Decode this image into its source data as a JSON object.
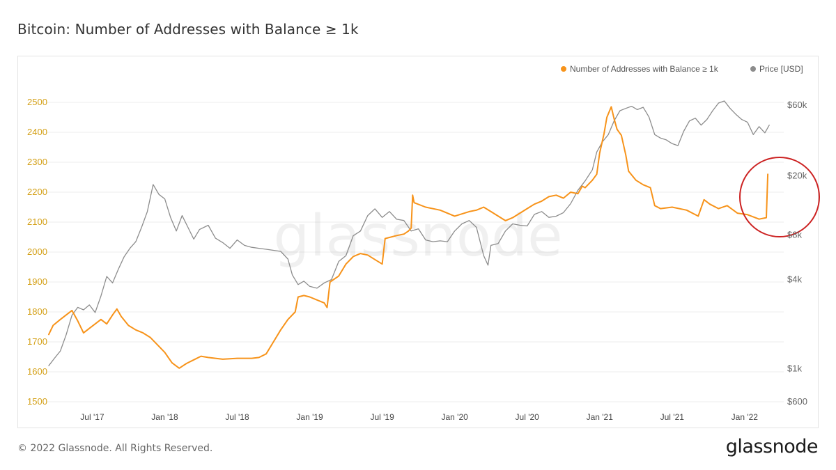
{
  "header": {
    "title": "Bitcoin: Number of Addresses with Balance ≥ 1k"
  },
  "footer": {
    "copyright": "© 2022 Glassnode. All Rights Reserved.",
    "logo_text": "glassnode"
  },
  "watermark": "glassnode",
  "colors": {
    "addresses": "#f7931a",
    "price": "#8c8c8c",
    "left_axis_text": "#d4a017",
    "right_axis_text": "#666666",
    "grid": "#eeeeee",
    "highlight_circle": "#cc2222"
  },
  "chart_data": {
    "type": "line",
    "title": "Bitcoin: Number of Addresses with Balance ≥ 1k",
    "x_range": [
      2017.2,
      2022.27
    ],
    "x_ticks": [
      {
        "label": "Jul '17",
        "t": 2017.5
      },
      {
        "label": "Jan '18",
        "t": 2018.0
      },
      {
        "label": "Jul '18",
        "t": 2018.5
      },
      {
        "label": "Jan '19",
        "t": 2019.0
      },
      {
        "label": "Jul '19",
        "t": 2019.5
      },
      {
        "label": "Jan '20",
        "t": 2020.0
      },
      {
        "label": "Jul '20",
        "t": 2020.5
      },
      {
        "label": "Jan '21",
        "t": 2021.0
      },
      {
        "label": "Jul '21",
        "t": 2021.5
      },
      {
        "label": "Jan '22",
        "t": 2022.0
      }
    ],
    "y_left": {
      "min": 1500,
      "max": 2500,
      "ticks": [
        1500,
        1600,
        1700,
        1800,
        1900,
        2000,
        2100,
        2200,
        2300,
        2400,
        2500
      ]
    },
    "y_right": {
      "scale": "log",
      "min": 600,
      "max": 60000,
      "ticks": [
        {
          "label": "$600",
          "v": 600
        },
        {
          "label": "$1k",
          "v": 1000
        },
        {
          "label": "$4k",
          "v": 4000
        },
        {
          "label": "$8k",
          "v": 8000
        },
        {
          "label": "$20k",
          "v": 20000
        },
        {
          "label": "$60k",
          "v": 60000
        }
      ]
    },
    "legend": {
      "position": "top-right",
      "entries": [
        "Number of Addresses with Balance ≥ 1k",
        "Price [USD]"
      ]
    },
    "series": [
      {
        "name": "Number of Addresses with Balance ≥ 1k",
        "axis": "left",
        "points": [
          [
            2017.2,
            1725
          ],
          [
            2017.23,
            1755
          ],
          [
            2017.28,
            1775
          ],
          [
            2017.32,
            1790
          ],
          [
            2017.36,
            1805
          ],
          [
            2017.4,
            1770
          ],
          [
            2017.44,
            1730
          ],
          [
            2017.48,
            1745
          ],
          [
            2017.52,
            1760
          ],
          [
            2017.56,
            1775
          ],
          [
            2017.6,
            1760
          ],
          [
            2017.64,
            1790
          ],
          [
            2017.67,
            1810
          ],
          [
            2017.7,
            1785
          ],
          [
            2017.75,
            1755
          ],
          [
            2017.8,
            1740
          ],
          [
            2017.85,
            1730
          ],
          [
            2017.9,
            1715
          ],
          [
            2017.95,
            1690
          ],
          [
            2018.0,
            1665
          ],
          [
            2018.05,
            1630
          ],
          [
            2018.1,
            1612
          ],
          [
            2018.15,
            1628
          ],
          [
            2018.2,
            1640
          ],
          [
            2018.25,
            1652
          ],
          [
            2018.3,
            1648
          ],
          [
            2018.35,
            1645
          ],
          [
            2018.4,
            1642
          ],
          [
            2018.5,
            1645
          ],
          [
            2018.6,
            1645
          ],
          [
            2018.65,
            1648
          ],
          [
            2018.7,
            1660
          ],
          [
            2018.75,
            1700
          ],
          [
            2018.8,
            1740
          ],
          [
            2018.85,
            1775
          ],
          [
            2018.9,
            1800
          ],
          [
            2018.92,
            1850
          ],
          [
            2018.96,
            1855
          ],
          [
            2019.0,
            1850
          ],
          [
            2019.05,
            1840
          ],
          [
            2019.1,
            1830
          ],
          [
            2019.12,
            1815
          ],
          [
            2019.14,
            1900
          ],
          [
            2019.2,
            1920
          ],
          [
            2019.25,
            1960
          ],
          [
            2019.3,
            1985
          ],
          [
            2019.35,
            1995
          ],
          [
            2019.4,
            1990
          ],
          [
            2019.45,
            1975
          ],
          [
            2019.5,
            1960
          ],
          [
            2019.52,
            2045
          ],
          [
            2019.6,
            2055
          ],
          [
            2019.65,
            2060
          ],
          [
            2019.68,
            2070
          ],
          [
            2019.7,
            2080
          ],
          [
            2019.71,
            2190
          ],
          [
            2019.72,
            2165
          ],
          [
            2019.8,
            2150
          ],
          [
            2019.9,
            2140
          ],
          [
            2020.0,
            2120
          ],
          [
            2020.1,
            2135
          ],
          [
            2020.15,
            2140
          ],
          [
            2020.2,
            2150
          ],
          [
            2020.25,
            2135
          ],
          [
            2020.3,
            2120
          ],
          [
            2020.35,
            2105
          ],
          [
            2020.4,
            2115
          ],
          [
            2020.45,
            2130
          ],
          [
            2020.5,
            2145
          ],
          [
            2020.55,
            2160
          ],
          [
            2020.6,
            2170
          ],
          [
            2020.65,
            2185
          ],
          [
            2020.7,
            2190
          ],
          [
            2020.75,
            2180
          ],
          [
            2020.8,
            2200
          ],
          [
            2020.85,
            2195
          ],
          [
            2020.88,
            2220
          ],
          [
            2020.9,
            2215
          ],
          [
            2020.95,
            2240
          ],
          [
            2020.98,
            2260
          ],
          [
            2021.0,
            2330
          ],
          [
            2021.03,
            2395
          ],
          [
            2021.05,
            2450
          ],
          [
            2021.08,
            2485
          ],
          [
            2021.1,
            2445
          ],
          [
            2021.12,
            2410
          ],
          [
            2021.15,
            2390
          ],
          [
            2021.18,
            2325
          ],
          [
            2021.2,
            2270
          ],
          [
            2021.25,
            2240
          ],
          [
            2021.3,
            2225
          ],
          [
            2021.35,
            2215
          ],
          [
            2021.38,
            2155
          ],
          [
            2021.42,
            2145
          ],
          [
            2021.5,
            2150
          ],
          [
            2021.6,
            2140
          ],
          [
            2021.68,
            2120
          ],
          [
            2021.72,
            2175
          ],
          [
            2021.76,
            2160
          ],
          [
            2021.82,
            2145
          ],
          [
            2021.88,
            2155
          ],
          [
            2021.95,
            2130
          ],
          [
            2022.02,
            2125
          ],
          [
            2022.1,
            2110
          ],
          [
            2022.15,
            2115
          ],
          [
            2022.16,
            2260
          ]
        ]
      },
      {
        "name": "Price [USD]",
        "axis": "right",
        "points": [
          [
            2017.2,
            1050
          ],
          [
            2017.24,
            1180
          ],
          [
            2017.28,
            1320
          ],
          [
            2017.32,
            1700
          ],
          [
            2017.36,
            2300
          ],
          [
            2017.4,
            2600
          ],
          [
            2017.44,
            2500
          ],
          [
            2017.48,
            2700
          ],
          [
            2017.52,
            2400
          ],
          [
            2017.56,
            3100
          ],
          [
            2017.6,
            4200
          ],
          [
            2017.64,
            3800
          ],
          [
            2017.68,
            4700
          ],
          [
            2017.72,
            5700
          ],
          [
            2017.76,
            6500
          ],
          [
            2017.8,
            7200
          ],
          [
            2017.84,
            9000
          ],
          [
            2017.88,
            11500
          ],
          [
            2017.92,
            17500
          ],
          [
            2017.96,
            15000
          ],
          [
            2018.0,
            14000
          ],
          [
            2018.04,
            10500
          ],
          [
            2018.08,
            8500
          ],
          [
            2018.12,
            10800
          ],
          [
            2018.16,
            9000
          ],
          [
            2018.2,
            7500
          ],
          [
            2018.24,
            8700
          ],
          [
            2018.3,
            9300
          ],
          [
            2018.35,
            7600
          ],
          [
            2018.4,
            7100
          ],
          [
            2018.45,
            6500
          ],
          [
            2018.5,
            7400
          ],
          [
            2018.55,
            6800
          ],
          [
            2018.6,
            6600
          ],
          [
            2018.65,
            6500
          ],
          [
            2018.7,
            6400
          ],
          [
            2018.75,
            6300
          ],
          [
            2018.8,
            6200
          ],
          [
            2018.85,
            5500
          ],
          [
            2018.88,
            4300
          ],
          [
            2018.92,
            3700
          ],
          [
            2018.96,
            3900
          ],
          [
            2019.0,
            3600
          ],
          [
            2019.05,
            3500
          ],
          [
            2019.1,
            3800
          ],
          [
            2019.15,
            4000
          ],
          [
            2019.2,
            5300
          ],
          [
            2019.25,
            5800
          ],
          [
            2019.3,
            7900
          ],
          [
            2019.35,
            8500
          ],
          [
            2019.4,
            10800
          ],
          [
            2019.45,
            12000
          ],
          [
            2019.5,
            10500
          ],
          [
            2019.55,
            11500
          ],
          [
            2019.6,
            10200
          ],
          [
            2019.65,
            10000
          ],
          [
            2019.7,
            8500
          ],
          [
            2019.75,
            8800
          ],
          [
            2019.8,
            7400
          ],
          [
            2019.85,
            7200
          ],
          [
            2019.9,
            7300
          ],
          [
            2019.95,
            7200
          ],
          [
            2020.0,
            8500
          ],
          [
            2020.05,
            9500
          ],
          [
            2020.1,
            10000
          ],
          [
            2020.15,
            9000
          ],
          [
            2020.2,
            5800
          ],
          [
            2020.23,
            5000
          ],
          [
            2020.25,
            6800
          ],
          [
            2020.3,
            7000
          ],
          [
            2020.35,
            8500
          ],
          [
            2020.4,
            9500
          ],
          [
            2020.45,
            9300
          ],
          [
            2020.5,
            9200
          ],
          [
            2020.55,
            11000
          ],
          [
            2020.6,
            11500
          ],
          [
            2020.65,
            10500
          ],
          [
            2020.7,
            10700
          ],
          [
            2020.75,
            11300
          ],
          [
            2020.8,
            13000
          ],
          [
            2020.85,
            16000
          ],
          [
            2020.9,
            18500
          ],
          [
            2020.95,
            22000
          ],
          [
            2020.98,
            29000
          ],
          [
            2021.02,
            34000
          ],
          [
            2021.06,
            38000
          ],
          [
            2021.1,
            47000
          ],
          [
            2021.14,
            55000
          ],
          [
            2021.18,
            57000
          ],
          [
            2021.22,
            59000
          ],
          [
            2021.26,
            56000
          ],
          [
            2021.3,
            58000
          ],
          [
            2021.34,
            50000
          ],
          [
            2021.38,
            38000
          ],
          [
            2021.42,
            36000
          ],
          [
            2021.46,
            35000
          ],
          [
            2021.5,
            33000
          ],
          [
            2021.54,
            32000
          ],
          [
            2021.58,
            40000
          ],
          [
            2021.62,
            47000
          ],
          [
            2021.66,
            49000
          ],
          [
            2021.7,
            44000
          ],
          [
            2021.74,
            48000
          ],
          [
            2021.78,
            55000
          ],
          [
            2021.82,
            62000
          ],
          [
            2021.86,
            64000
          ],
          [
            2021.9,
            57000
          ],
          [
            2021.94,
            52000
          ],
          [
            2021.98,
            48000
          ],
          [
            2022.02,
            46000
          ],
          [
            2022.06,
            38000
          ],
          [
            2022.1,
            43000
          ],
          [
            2022.14,
            39000
          ],
          [
            2022.17,
            44000
          ]
        ]
      }
    ]
  }
}
